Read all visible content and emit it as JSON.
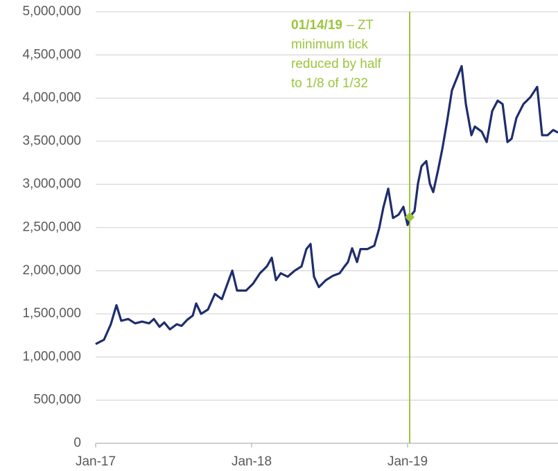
{
  "chart_data": {
    "type": "line",
    "x": [
      0,
      0.64,
      1.17,
      1.6,
      1.97,
      2.51,
      3.04,
      3.57,
      4.11,
      4.48,
      4.91,
      5.28,
      5.71,
      6.24,
      6.61,
      7.04,
      7.47,
      7.73,
      8.11,
      8.64,
      9.17,
      9.71,
      10.24,
      10.51,
      10.88,
      11.57,
      12.11,
      12.64,
      13.17,
      13.55,
      13.87,
      14.24,
      14.77,
      15.31,
      15.84,
      16.21,
      16.53,
      16.8,
      17.17,
      17.71,
      18.24,
      18.77,
      19.15,
      19.41,
      19.73,
      20.11,
      20.37,
      20.91,
      21.44,
      21.81,
      22.13,
      22.51,
      22.88,
      23.31,
      23.68,
      24.0,
      24.16,
      24.53,
      24.8,
      25.07,
      25.44,
      25.71,
      25.97,
      26.35,
      26.67,
      27.04,
      27.41,
      27.84,
      28.16,
      28.48,
      28.91,
      29.17,
      29.71,
      30.08,
      30.51,
      30.93,
      31.31,
      31.68,
      32.0,
      32.37,
      32.91,
      33.44,
      33.97,
      34.35,
      34.77,
      35.2,
      35.57
    ],
    "series": [
      {
        "color": "#1f2d6e",
        "values": [
          1150000,
          1200000,
          1380000,
          1600000,
          1420000,
          1440000,
          1390000,
          1410000,
          1390000,
          1440000,
          1350000,
          1400000,
          1320000,
          1380000,
          1360000,
          1430000,
          1480000,
          1620000,
          1500000,
          1550000,
          1730000,
          1670000,
          1890000,
          2000000,
          1770000,
          1770000,
          1850000,
          1970000,
          2050000,
          2150000,
          1890000,
          1970000,
          1930000,
          2000000,
          2050000,
          2250000,
          2310000,
          1930000,
          1810000,
          1890000,
          1940000,
          1970000,
          2050000,
          2100000,
          2260000,
          2100000,
          2250000,
          2250000,
          2290000,
          2490000,
          2730000,
          2950000,
          2610000,
          2650000,
          2740000,
          2530000,
          2620000,
          2690000,
          3010000,
          3210000,
          3270000,
          3010000,
          2910000,
          3170000,
          3410000,
          3730000,
          4090000,
          4250000,
          4370000,
          3930000,
          3570000,
          3670000,
          3610000,
          3490000,
          3850000,
          3970000,
          3930000,
          3490000,
          3530000,
          3770000,
          3930000,
          4010000,
          4130000,
          3570000,
          3570000,
          3630000,
          3600000
        ]
      }
    ],
    "xlim": [
      0,
      35.57
    ],
    "xticks": [
      {
        "value": 0,
        "label": "Jan-17"
      },
      {
        "value": 12,
        "label": "Jan-18"
      },
      {
        "value": 24,
        "label": "Jan-19"
      }
    ],
    "ylim": [
      0,
      5000000
    ],
    "yticks": [
      0,
      {
        "value": 500000,
        "label": "500,000"
      },
      {
        "value": 1000000,
        "label": "1,000,000"
      },
      {
        "value": 1500000,
        "label": "1,500,000"
      },
      {
        "value": 2000000,
        "label": "2,000,000"
      },
      {
        "value": 2500000,
        "label": "2,500,000"
      },
      {
        "value": 3000000,
        "label": "3,000,000"
      },
      {
        "value": 3500000,
        "label": "3,500,000"
      },
      {
        "value": 4000000,
        "label": "4,000,000"
      },
      {
        "value": 4500000,
        "label": "4,500,000"
      },
      {
        "value": 5000000,
        "label": "5,000,000"
      }
    ],
    "grid": true,
    "annotation": {
      "x": 24.16,
      "value": 2620000,
      "color": "#9bc53d",
      "label": "01/14/19",
      "text": [
        "– ZT",
        "minimum tick",
        "reduced by half",
        "to 1/8 of 1/32"
      ]
    }
  }
}
